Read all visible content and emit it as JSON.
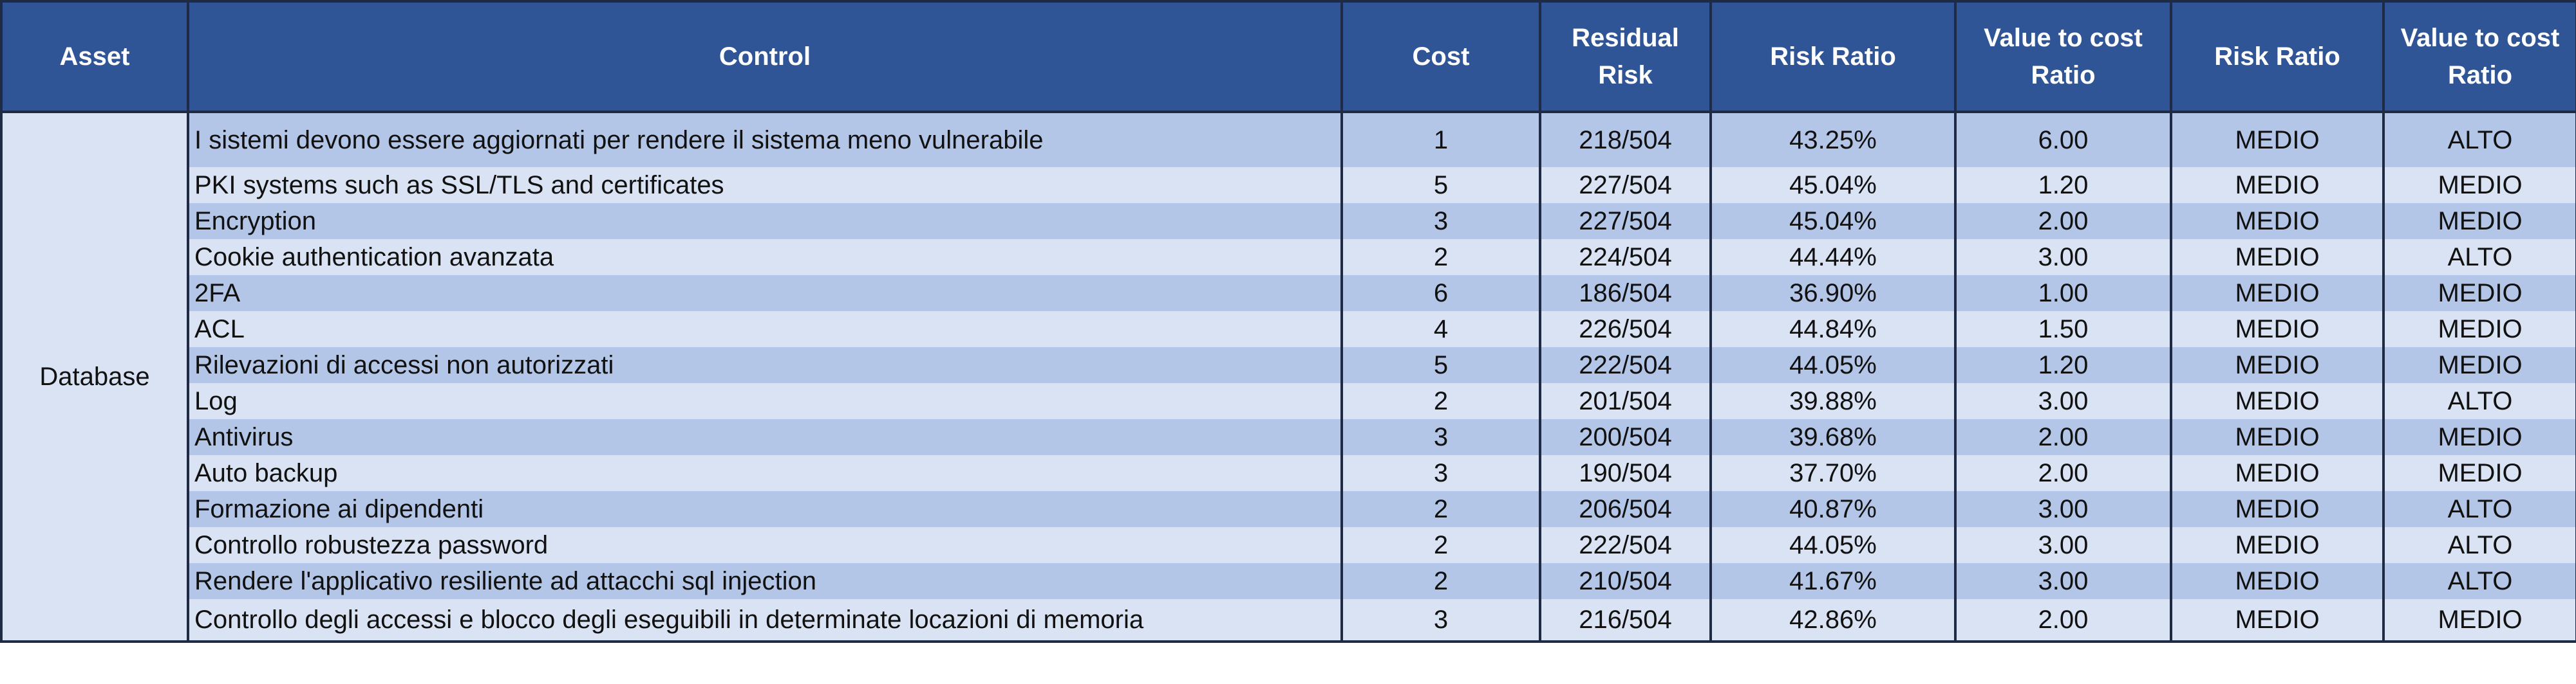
{
  "headers": {
    "asset": "Asset",
    "control": "Control",
    "cost": "Cost",
    "residual_risk": "Residual Risk",
    "risk_ratio": "Risk Ratio",
    "value_to_cost_ratio": "Value to cost Ratio",
    "risk_ratio_level": "Risk Ratio",
    "value_to_cost_level": "Value to cost Ratio"
  },
  "asset": "Database",
  "rows": [
    {
      "control": "I sistemi devono essere aggiornati per rendere il sistema meno vulnerabile",
      "cost": "1",
      "residual": "218/504",
      "ratio": "43.25%",
      "vcr": "6.00",
      "risk_level": "MEDIO",
      "vcr_level": "ALTO"
    },
    {
      "control": "PKI systems such as SSL/TLS and certificates",
      "cost": "5",
      "residual": "227/504",
      "ratio": "45.04%",
      "vcr": "1.20",
      "risk_level": "MEDIO",
      "vcr_level": "MEDIO"
    },
    {
      "control": "Encryption",
      "cost": "3",
      "residual": "227/504",
      "ratio": "45.04%",
      "vcr": "2.00",
      "risk_level": "MEDIO",
      "vcr_level": "MEDIO"
    },
    {
      "control": "Cookie authentication avanzata",
      "cost": "2",
      "residual": "224/504",
      "ratio": "44.44%",
      "vcr": "3.00",
      "risk_level": "MEDIO",
      "vcr_level": "ALTO"
    },
    {
      "control": "2FA",
      "cost": "6",
      "residual": "186/504",
      "ratio": "36.90%",
      "vcr": "1.00",
      "risk_level": "MEDIO",
      "vcr_level": "MEDIO"
    },
    {
      "control": "ACL",
      "cost": "4",
      "residual": "226/504",
      "ratio": "44.84%",
      "vcr": "1.50",
      "risk_level": "MEDIO",
      "vcr_level": "MEDIO"
    },
    {
      "control": "Rilevazioni di accessi non autorizzati",
      "cost": "5",
      "residual": "222/504",
      "ratio": "44.05%",
      "vcr": "1.20",
      "risk_level": "MEDIO",
      "vcr_level": "MEDIO"
    },
    {
      "control": "Log",
      "cost": "2",
      "residual": "201/504",
      "ratio": "39.88%",
      "vcr": "3.00",
      "risk_level": "MEDIO",
      "vcr_level": "ALTO"
    },
    {
      "control": "Antivirus",
      "cost": "3",
      "residual": "200/504",
      "ratio": "39.68%",
      "vcr": "2.00",
      "risk_level": "MEDIO",
      "vcr_level": "MEDIO"
    },
    {
      "control": "Auto backup",
      "cost": "3",
      "residual": "190/504",
      "ratio": "37.70%",
      "vcr": "2.00",
      "risk_level": "MEDIO",
      "vcr_level": "MEDIO"
    },
    {
      "control": "Formazione ai dipendenti",
      "cost": "2",
      "residual": "206/504",
      "ratio": "40.87%",
      "vcr": "3.00",
      "risk_level": "MEDIO",
      "vcr_level": "ALTO"
    },
    {
      "control": "Controllo robustezza password",
      "cost": "2",
      "residual": "222/504",
      "ratio": "44.05%",
      "vcr": "3.00",
      "risk_level": "MEDIO",
      "vcr_level": "ALTO"
    },
    {
      "control": "Rendere l'applicativo resiliente ad attacchi sql injection",
      "cost": "2",
      "residual": "210/504",
      "ratio": "41.67%",
      "vcr": "3.00",
      "risk_level": "MEDIO",
      "vcr_level": "ALTO"
    },
    {
      "control": "Controllo degli accessi e blocco degli eseguibili in determinate locazioni di memoria",
      "cost": "3",
      "residual": "216/504",
      "ratio": "42.86%",
      "vcr": "2.00",
      "risk_level": "MEDIO",
      "vcr_level": "MEDIO"
    }
  ]
}
